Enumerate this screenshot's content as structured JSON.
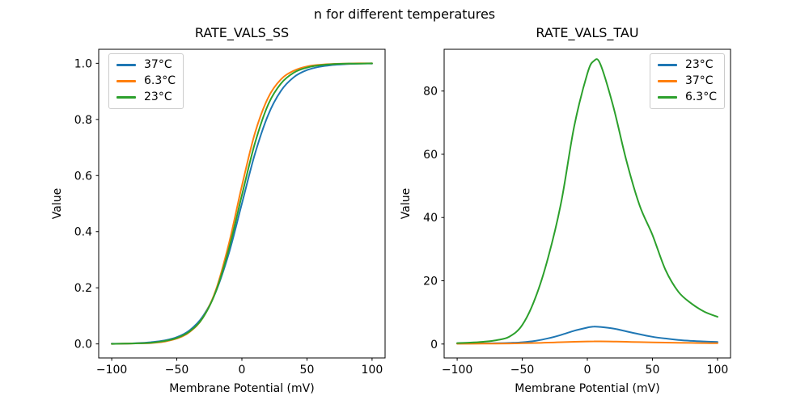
{
  "figure": {
    "suptitle": "n for different temperatures",
    "background": "#ffffff",
    "text_color": "#000000",
    "spine_color": "#000000"
  },
  "chart_data": [
    {
      "type": "line",
      "title": "RATE_VALS_SS",
      "xlabel": "Membrane Potential (mV)",
      "ylabel": "Value",
      "xlim": [
        -110,
        110
      ],
      "ylim": [
        -0.05,
        1.05
      ],
      "grid": false,
      "xticks": {
        "values": [
          -100,
          -50,
          0,
          50,
          100
        ],
        "labels": [
          "−100",
          "−50",
          "0",
          "50",
          "100"
        ]
      },
      "yticks": {
        "values": [
          0,
          0.2,
          0.4,
          0.6,
          0.8,
          1.0
        ],
        "labels": [
          "0.0",
          "0.2",
          "0.4",
          "0.6",
          "0.8",
          "1.0"
        ]
      },
      "legend": {
        "position": "upper-left",
        "entries": [
          {
            "label": "37°C",
            "color": "#1f77b4"
          },
          {
            "label": "6.3°C",
            "color": "#ff7f0e"
          },
          {
            "label": "23°C",
            "color": "#2ca02c"
          }
        ]
      },
      "x": [
        -100,
        -90,
        -80,
        -70,
        -60,
        -50,
        -40,
        -30,
        -20,
        -10,
        0,
        10,
        20,
        30,
        40,
        50,
        60,
        70,
        80,
        90,
        100
      ],
      "series": [
        {
          "name": "37°C",
          "color": "#1f77b4",
          "values": [
            0.001,
            0.001,
            0.003,
            0.006,
            0.012,
            0.024,
            0.049,
            0.098,
            0.186,
            0.323,
            0.5,
            0.677,
            0.814,
            0.902,
            0.951,
            0.976,
            0.988,
            0.994,
            0.997,
            0.999,
            0.999
          ]
        },
        {
          "name": "6.3°C",
          "color": "#ff7f0e",
          "values": [
            0.0,
            0.001,
            0.002,
            0.003,
            0.008,
            0.019,
            0.043,
            0.093,
            0.192,
            0.357,
            0.563,
            0.751,
            0.876,
            0.943,
            0.974,
            0.989,
            0.995,
            0.998,
            0.999,
            1.0,
            1.0
          ]
        },
        {
          "name": "23°C",
          "color": "#2ca02c",
          "values": [
            0.0,
            0.001,
            0.002,
            0.004,
            0.01,
            0.021,
            0.045,
            0.093,
            0.187,
            0.338,
            0.53,
            0.715,
            0.851,
            0.928,
            0.967,
            0.985,
            0.993,
            0.997,
            0.999,
            0.999,
            1.0
          ]
        }
      ]
    },
    {
      "type": "line",
      "title": "RATE_VALS_TAU",
      "xlabel": "Membrane Potential (mV)",
      "ylabel": "Value",
      "xlim": [
        -110,
        110
      ],
      "ylim": [
        -4.4,
        93.2
      ],
      "grid": false,
      "xticks": {
        "values": [
          -100,
          -50,
          0,
          50,
          100
        ],
        "labels": [
          "−100",
          "−50",
          "0",
          "50",
          "100"
        ]
      },
      "yticks": {
        "values": [
          0,
          20,
          40,
          60,
          80
        ],
        "labels": [
          "0",
          "20",
          "40",
          "60",
          "80"
        ]
      },
      "legend": {
        "position": "upper-right",
        "entries": [
          {
            "label": "23°C",
            "color": "#1f77b4"
          },
          {
            "label": "37°C",
            "color": "#ff7f0e"
          },
          {
            "label": "6.3°C",
            "color": "#2ca02c"
          }
        ]
      },
      "x": [
        -100,
        -90,
        -80,
        -70,
        -60,
        -50,
        -40,
        -30,
        -20,
        -10,
        0,
        5,
        10,
        20,
        30,
        40,
        50,
        60,
        70,
        80,
        90,
        100
      ],
      "series": [
        {
          "name": "23°C",
          "color": "#1f77b4",
          "values": [
            0.15,
            0.17,
            0.2,
            0.25,
            0.35,
            0.55,
            1.0,
            1.8,
            2.9,
            4.2,
            5.2,
            5.5,
            5.4,
            4.9,
            4.0,
            3.1,
            2.3,
            1.75,
            1.3,
            1.0,
            0.8,
            0.65
          ]
        },
        {
          "name": "37°C",
          "color": "#ff7f0e",
          "values": [
            0.1,
            0.1,
            0.12,
            0.15,
            0.18,
            0.25,
            0.33,
            0.45,
            0.58,
            0.7,
            0.8,
            0.85,
            0.85,
            0.78,
            0.7,
            0.6,
            0.52,
            0.45,
            0.4,
            0.35,
            0.3,
            0.28
          ]
        },
        {
          "name": "6.3°C",
          "color": "#2ca02c",
          "values": [
            0.3,
            0.45,
            0.7,
            1.2,
            2.3,
            6.0,
            14.5,
            27.5,
            45.0,
            69.0,
            85.5,
            89.5,
            88.5,
            75.0,
            58.0,
            44.0,
            34.5,
            23.5,
            16.5,
            12.8,
            10.2,
            8.6
          ]
        }
      ]
    }
  ]
}
